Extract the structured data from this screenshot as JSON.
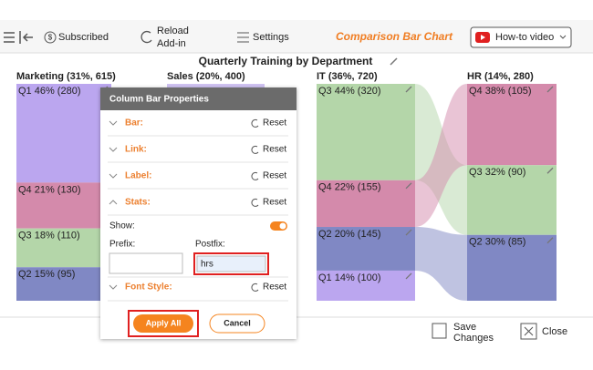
{
  "toolbar": {
    "subscribed": "Subscribed",
    "reload": [
      "Reload",
      "Add-in"
    ],
    "settings": "Settings",
    "app_title": "Comparison Bar Chart",
    "video": "How-to video"
  },
  "chart": {
    "title": "Quarterly Training by Department",
    "columns": [
      {
        "label": "Marketing (31%, 615)",
        "segments": [
          {
            "label": "Q1 46% (280)",
            "value": 280,
            "color": "#bba6ef"
          },
          {
            "label": "Q4 21% (130)",
            "value": 130,
            "color": "#d48aab"
          },
          {
            "label": "Q3 18% (110)",
            "value": 110,
            "color": "#b4d6a9"
          },
          {
            "label": "Q2 15% (95)",
            "value": 95,
            "color": "#8088c4"
          }
        ]
      },
      {
        "label": "Sales (20%, 400)",
        "segments": []
      },
      {
        "label": "IT (36%, 720)",
        "segments": [
          {
            "label": "Q3 44% (320)",
            "value": 320,
            "color": "#b4d6a9"
          },
          {
            "label": "Q4 22% (155)",
            "value": 155,
            "color": "#d48aab"
          },
          {
            "label": "Q2 20% (145)",
            "value": 145,
            "color": "#8088c4"
          },
          {
            "label": "Q1 14% (100)",
            "value": 100,
            "color": "#bba6ef"
          }
        ]
      },
      {
        "label": "HR (14%, 280)",
        "segments": [
          {
            "label": "Q4 38% (105)",
            "value": 105,
            "color": "#d48aab"
          },
          {
            "label": "Q3 32% (90)",
            "value": 90,
            "color": "#b4d6a9"
          },
          {
            "label": "Q2 30% (85)",
            "value": 85,
            "color": "#8088c4"
          }
        ]
      }
    ]
  },
  "dialog": {
    "title": "Column Bar Properties",
    "sections": [
      {
        "label": "Bar:",
        "reset": "Reset"
      },
      {
        "label": "Link:",
        "reset": "Reset"
      },
      {
        "label": "Label:",
        "reset": "Reset"
      },
      {
        "label": "Stats:",
        "reset": "Reset"
      }
    ],
    "show": "Show:",
    "prefix": "Prefix:",
    "postfix": "Postfix:",
    "postfix_value": "hrs",
    "font_style": {
      "label": "Font Style:",
      "reset": "Reset"
    },
    "apply": "Apply All",
    "cancel": "Cancel"
  },
  "bottom": {
    "save": [
      "Save",
      "Changes"
    ],
    "close": "Close"
  }
}
